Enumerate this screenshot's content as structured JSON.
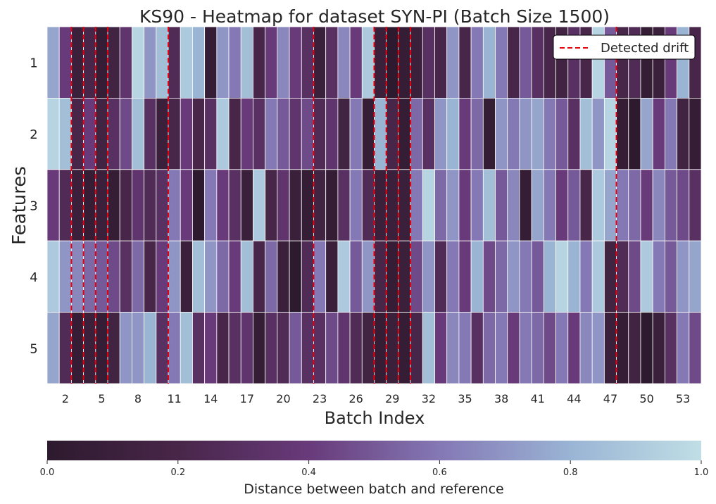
{
  "chart_data": {
    "type": "heatmap",
    "title": "KS90 - Heatmap for dataset SYN-PI (Batch Size 1500)",
    "xlabel": "Batch Index",
    "ylabel": "Features",
    "rows": [
      "1",
      "2",
      "3",
      "4",
      "5"
    ],
    "columns": [
      1,
      2,
      3,
      4,
      5,
      6,
      7,
      8,
      9,
      10,
      11,
      12,
      13,
      14,
      15,
      16,
      17,
      18,
      19,
      20,
      21,
      22,
      23,
      24,
      25,
      26,
      27,
      28,
      29,
      30,
      31,
      32,
      33,
      34,
      35,
      36,
      37,
      38,
      39,
      40,
      41,
      42,
      43,
      44,
      45,
      46,
      47,
      48,
      49,
      50,
      51,
      52,
      53,
      54
    ],
    "x_tick_labels": [
      "2",
      "5",
      "8",
      "11",
      "14",
      "17",
      "20",
      "23",
      "26",
      "29",
      "32",
      "35",
      "38",
      "41",
      "44",
      "47",
      "50",
      "53"
    ],
    "values": [
      [
        0.75,
        0.4,
        0.1,
        0.2,
        0.05,
        0.15,
        0.35,
        0.95,
        0.7,
        0.85,
        0.25,
        0.9,
        0.8,
        0.05,
        0.7,
        0.6,
        0.85,
        0.2,
        0.4,
        0.65,
        0.4,
        0.3,
        0.1,
        0.3,
        0.65,
        0.4,
        0.9,
        0.1,
        0.0,
        0.05,
        0.1,
        0.3,
        0.2,
        0.7,
        0.2,
        0.6,
        0.8,
        0.6,
        0.2,
        0.5,
        0.3,
        0.2,
        0.15,
        0.3,
        0.2,
        0.95,
        0.5,
        0.2,
        0.25,
        0.05,
        0.1,
        0.4,
        0.8,
        0.2
      ],
      [
        0.95,
        0.85,
        0.2,
        0.4,
        0.15,
        0.3,
        0.45,
        0.85,
        0.3,
        0.1,
        0.2,
        0.4,
        0.2,
        0.3,
        0.9,
        0.2,
        0.4,
        0.3,
        0.6,
        0.5,
        0.35,
        0.45,
        0.25,
        0.35,
        0.15,
        0.6,
        0.05,
        0.8,
        0.2,
        0.05,
        0.55,
        0.3,
        0.7,
        0.8,
        0.4,
        0.55,
        0.05,
        0.7,
        0.6,
        0.7,
        0.75,
        0.6,
        0.5,
        0.3,
        0.85,
        0.7,
        0.95,
        0.05,
        0.0,
        0.75,
        0.4,
        0.6,
        0.15,
        0.05
      ],
      [
        0.4,
        0.25,
        0.1,
        0.05,
        0.1,
        0.05,
        0.2,
        0.35,
        0.25,
        0.3,
        0.6,
        0.4,
        0.0,
        0.6,
        0.4,
        0.3,
        0.1,
        0.9,
        0.2,
        0.35,
        0.1,
        0.05,
        0.15,
        0.05,
        0.3,
        0.6,
        0.25,
        0.1,
        0.1,
        0.1,
        0.6,
        0.95,
        0.55,
        0.7,
        0.4,
        0.6,
        0.85,
        0.5,
        0.65,
        0.05,
        0.75,
        0.6,
        0.4,
        0.5,
        0.2,
        0.9,
        0.75,
        0.6,
        0.55,
        0.4,
        0.65,
        0.5,
        0.45,
        0.3
      ],
      [
        0.9,
        0.7,
        0.65,
        0.55,
        0.5,
        0.45,
        0.3,
        0.55,
        0.2,
        0.4,
        0.7,
        0.1,
        0.85,
        0.7,
        0.55,
        0.4,
        0.85,
        0.2,
        0.55,
        0.1,
        0.0,
        0.25,
        0.6,
        0.1,
        0.9,
        0.5,
        0.7,
        0.2,
        0.05,
        0.1,
        0.45,
        0.7,
        0.25,
        0.6,
        0.4,
        0.8,
        0.45,
        0.55,
        0.7,
        0.6,
        0.5,
        0.8,
        0.95,
        0.8,
        0.6,
        0.9,
        0.15,
        0.25,
        0.45,
        0.9,
        0.6,
        0.5,
        0.7,
        0.75
      ],
      [
        0.75,
        0.25,
        0.05,
        0.1,
        0.05,
        0.15,
        0.7,
        0.7,
        0.8,
        0.3,
        0.6,
        0.85,
        0.3,
        0.4,
        0.2,
        0.3,
        0.35,
        0.05,
        0.3,
        0.25,
        0.5,
        0.3,
        0.3,
        0.45,
        0.35,
        0.25,
        0.15,
        0.05,
        0.1,
        0.05,
        0.2,
        0.85,
        0.4,
        0.65,
        0.6,
        0.3,
        0.55,
        0.6,
        0.4,
        0.6,
        0.55,
        0.45,
        0.6,
        0.4,
        0.65,
        0.7,
        0.1,
        0.05,
        0.15,
        0.0,
        0.1,
        0.3,
        0.6,
        0.45
      ]
    ],
    "drift_batches": [
      2.5,
      3.5,
      4.5,
      5.5,
      10.5,
      22.5,
      27.5,
      28.5,
      29.5,
      30.5,
      47.5
    ],
    "drift_color": "#e8000b",
    "legend": {
      "label": "Detected drift",
      "position": "top-right"
    },
    "colorbar": {
      "label": "Distance between batch and reference",
      "range": [
        0.0,
        1.0
      ],
      "ticks": [
        "0.0",
        "0.2",
        "0.4",
        "0.6",
        "0.8",
        "1.0"
      ],
      "colors": [
        "#2d1a2e",
        "#482649",
        "#683a7a",
        "#8478b5",
        "#9ab4d4",
        "#bfdee5"
      ]
    }
  }
}
